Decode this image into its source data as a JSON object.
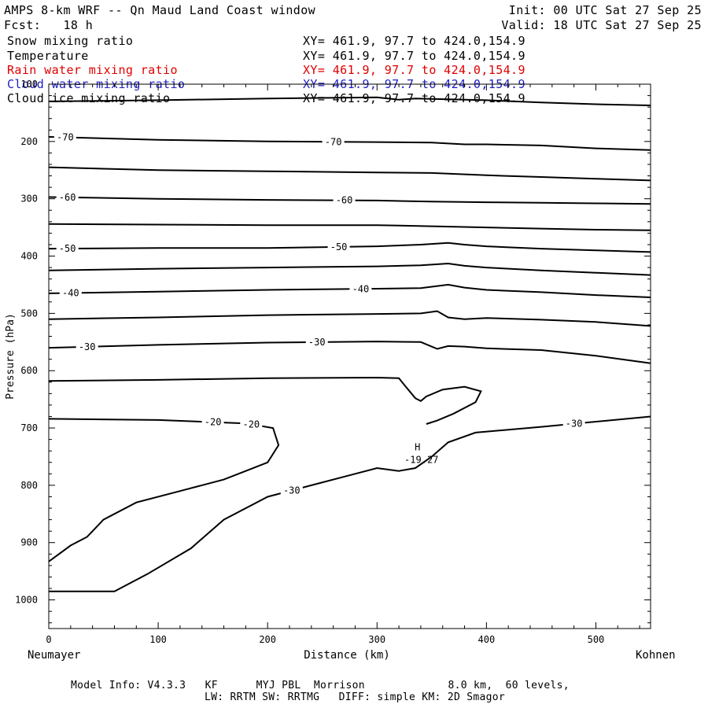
{
  "header": {
    "title": "AMPS 8-km WRF -- Qn Maud Land Coast window",
    "init": "Init: 00 UTC Sat 27 Sep 25",
    "fcst": "Fcst:   18 h",
    "valid": "Valid: 18 UTC Sat 27 Sep 25"
  },
  "fields": [
    {
      "name": "Snow mixing ratio",
      "xy": "XY= 461.9, 97.7 to 424.0,154.9",
      "color": "#000000"
    },
    {
      "name": "Temperature",
      "xy": "XY= 461.9, 97.7 to 424.0,154.9",
      "color": "#000000"
    },
    {
      "name": "Rain water mixing ratio",
      "xy": "XY= 461.9, 97.7 to 424.0,154.9",
      "color": "#ff0000"
    },
    {
      "name": "Cloud water mixing ratio",
      "xy": "XY= 461.9, 97.7 to 424.0,154.9",
      "color": "#0000ff"
    },
    {
      "name": "Cloud ice mixing ratio",
      "xy": "XY= 461.9, 97.7 to 424.0,154.9",
      "color": "#000000"
    }
  ],
  "footer": {
    "line1": "Model Info: V4.3.3   KF      MYJ PBL  Morrison             8.0 km,  60 levels,",
    "line2": "LW: RRTM SW: RRTMG   DIFF: simple KM: 2D Smagor"
  },
  "chart_data": {
    "type": "contour",
    "xlabel": "Distance (km)",
    "ylabel": "Pressure (hPa)",
    "xlim": [
      0,
      550
    ],
    "ylim": [
      1050,
      100
    ],
    "x_ticks": [
      0,
      100,
      200,
      300,
      400,
      500
    ],
    "y_ticks": [
      100,
      200,
      300,
      400,
      500,
      600,
      700,
      800,
      900,
      1000
    ],
    "left_endpoint": "Neumayer",
    "right_endpoint": "Kohnen",
    "high_marker": {
      "symbol": "H",
      "value": "-19.27",
      "x": 337,
      "p": 758
    },
    "contours": [
      {
        "level": -75,
        "labels": [],
        "points": [
          [
            0,
            130
          ],
          [
            100,
            128
          ],
          [
            200,
            125
          ],
          [
            300,
            123
          ],
          [
            320,
            127
          ],
          [
            335,
            125
          ],
          [
            400,
            128
          ],
          [
            450,
            132
          ],
          [
            500,
            135
          ],
          [
            550,
            137
          ]
        ]
      },
      {
        "level": -70,
        "labels": [
          [
            15,
            -70
          ],
          [
            260,
            -70
          ]
        ],
        "points": [
          [
            0,
            192
          ],
          [
            100,
            197
          ],
          [
            200,
            200
          ],
          [
            300,
            201
          ],
          [
            350,
            202
          ],
          [
            380,
            205
          ],
          [
            400,
            205
          ],
          [
            450,
            207
          ],
          [
            500,
            212
          ],
          [
            550,
            215
          ]
        ]
      },
      {
        "level": -65,
        "labels": [],
        "points": [
          [
            0,
            245
          ],
          [
            100,
            250
          ],
          [
            200,
            252
          ],
          [
            300,
            254
          ],
          [
            350,
            255
          ],
          [
            400,
            259
          ],
          [
            450,
            262
          ],
          [
            500,
            265
          ],
          [
            550,
            268
          ]
        ]
      },
      {
        "level": -60,
        "labels": [
          [
            17,
            -60
          ],
          [
            270,
            -60
          ]
        ],
        "points": [
          [
            0,
            297
          ],
          [
            100,
            300
          ],
          [
            200,
            302
          ],
          [
            300,
            303
          ],
          [
            350,
            305
          ],
          [
            400,
            306
          ],
          [
            450,
            307
          ],
          [
            500,
            308
          ],
          [
            550,
            309
          ]
        ]
      },
      {
        "level": -55,
        "labels": [],
        "points": [
          [
            0,
            344
          ],
          [
            100,
            345
          ],
          [
            200,
            346
          ],
          [
            300,
            346
          ],
          [
            350,
            348
          ],
          [
            400,
            350
          ],
          [
            450,
            352
          ],
          [
            500,
            354
          ],
          [
            550,
            355
          ]
        ]
      },
      {
        "level": -50,
        "labels": [
          [
            17,
            -50
          ],
          [
            265,
            -50
          ]
        ],
        "points": [
          [
            0,
            387
          ],
          [
            100,
            386
          ],
          [
            200,
            386
          ],
          [
            300,
            383
          ],
          [
            340,
            380
          ],
          [
            365,
            377
          ],
          [
            380,
            380
          ],
          [
            400,
            383
          ],
          [
            450,
            387
          ],
          [
            500,
            390
          ],
          [
            550,
            393
          ]
        ]
      },
      {
        "level": -45,
        "labels": [],
        "points": [
          [
            0,
            425
          ],
          [
            100,
            422
          ],
          [
            200,
            420
          ],
          [
            300,
            418
          ],
          [
            340,
            416
          ],
          [
            365,
            413
          ],
          [
            380,
            417
          ],
          [
            400,
            420
          ],
          [
            450,
            425
          ],
          [
            500,
            429
          ],
          [
            550,
            433
          ]
        ]
      },
      {
        "level": -40,
        "labels": [
          [
            20,
            -40
          ],
          [
            285,
            -40
          ]
        ],
        "points": [
          [
            0,
            465
          ],
          [
            100,
            462
          ],
          [
            200,
            459
          ],
          [
            300,
            457
          ],
          [
            340,
            456
          ],
          [
            365,
            450
          ],
          [
            380,
            455
          ],
          [
            400,
            459
          ],
          [
            450,
            463
          ],
          [
            500,
            468
          ],
          [
            550,
            472
          ]
        ]
      },
      {
        "level": -35,
        "labels": [],
        "points": [
          [
            0,
            510
          ],
          [
            100,
            507
          ],
          [
            200,
            503
          ],
          [
            300,
            501
          ],
          [
            340,
            500
          ],
          [
            355,
            496
          ],
          [
            365,
            507
          ],
          [
            380,
            510
          ],
          [
            400,
            508
          ],
          [
            450,
            511
          ],
          [
            500,
            515
          ],
          [
            550,
            522
          ]
        ]
      },
      {
        "level": -30,
        "labels": [
          [
            35,
            -30
          ],
          [
            245,
            -30
          ]
        ],
        "points": [
          [
            0,
            560
          ],
          [
            100,
            555
          ],
          [
            200,
            551
          ],
          [
            300,
            549
          ],
          [
            340,
            550
          ],
          [
            355,
            562
          ],
          [
            365,
            557
          ],
          [
            380,
            558
          ],
          [
            400,
            561
          ],
          [
            450,
            564
          ],
          [
            500,
            574
          ],
          [
            550,
            587
          ]
        ]
      },
      {
        "level": -25,
        "labels": [],
        "points": [
          [
            0,
            618
          ],
          [
            100,
            616
          ],
          [
            200,
            613
          ],
          [
            300,
            612
          ],
          [
            320,
            613
          ],
          [
            325,
            625
          ],
          [
            335,
            648
          ],
          [
            340,
            653
          ],
          [
            345,
            645
          ],
          [
            360,
            633
          ],
          [
            380,
            628
          ],
          [
            395,
            636
          ],
          [
            390,
            655
          ],
          [
            370,
            675
          ],
          [
            355,
            687
          ],
          [
            345,
            693
          ]
        ]
      },
      {
        "level": -20,
        "labels": [
          [
            185,
            -20
          ],
          [
            150,
            -20
          ]
        ],
        "points": [
          [
            0,
            684
          ],
          [
            100,
            686
          ],
          [
            180,
            692
          ],
          [
            205,
            700
          ],
          [
            210,
            730
          ],
          [
            200,
            760
          ],
          [
            180,
            775
          ],
          [
            160,
            790
          ],
          [
            120,
            810
          ],
          [
            80,
            830
          ],
          [
            50,
            860
          ],
          [
            35,
            890
          ],
          [
            20,
            905
          ],
          [
            0,
            933
          ]
        ]
      },
      {
        "level": -30,
        "labels": [
          [
            222,
            -30
          ],
          [
            480,
            -30
          ]
        ],
        "points": [
          [
            0,
            985
          ],
          [
            60,
            985
          ],
          [
            90,
            955
          ],
          [
            130,
            910
          ],
          [
            160,
            860
          ],
          [
            200,
            820
          ],
          [
            240,
            800
          ],
          [
            280,
            780
          ],
          [
            300,
            770
          ],
          [
            320,
            775
          ],
          [
            335,
            770
          ],
          [
            350,
            750
          ],
          [
            365,
            725
          ],
          [
            390,
            708
          ],
          [
            450,
            698
          ],
          [
            550,
            680
          ]
        ]
      }
    ]
  }
}
